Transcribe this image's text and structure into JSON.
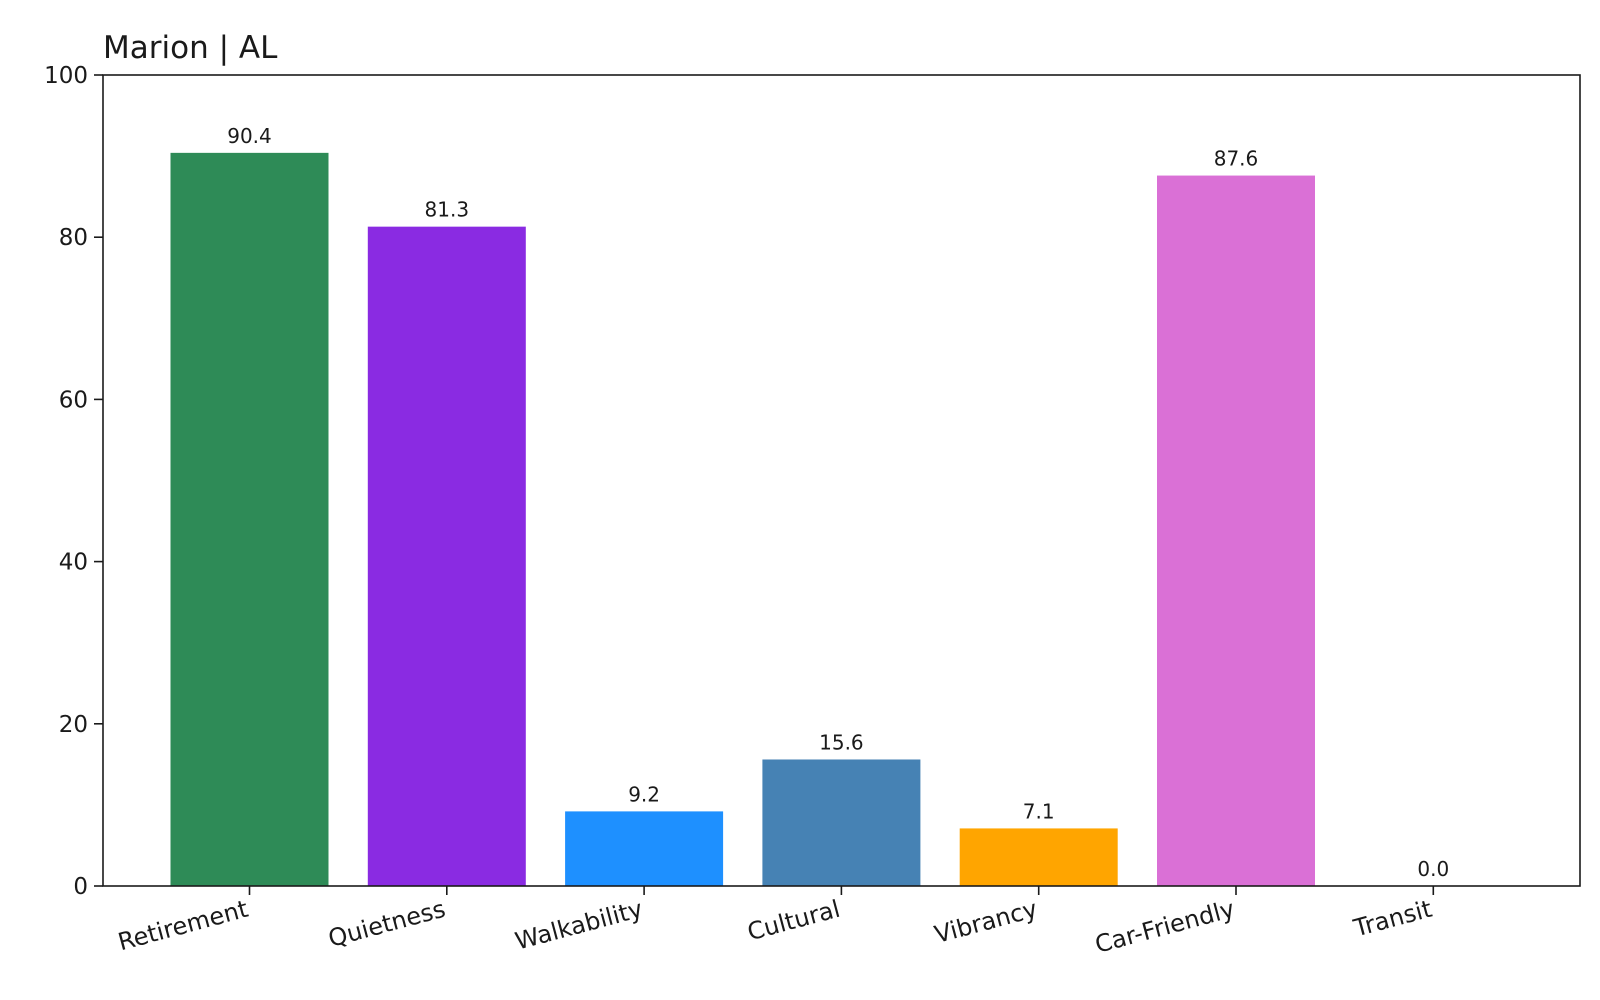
{
  "chart_data": {
    "type": "bar",
    "title": "Marion | AL",
    "xlabel": "",
    "ylabel": "",
    "ylim": [
      0,
      100
    ],
    "yticks": [
      "0",
      "20",
      "40",
      "60",
      "80",
      "100"
    ],
    "grid": false,
    "categories": [
      "Retirement",
      "Quietness",
      "Walkability",
      "Cultural",
      "Vibrancy",
      "Car-Friendly",
      "Transit"
    ],
    "values": [
      90.4,
      81.3,
      9.2,
      15.6,
      7.1,
      87.6,
      0.0
    ],
    "value_labels": [
      "90.4",
      "81.3",
      "9.2",
      "15.6",
      "7.1",
      "87.6",
      "0.0"
    ],
    "colors": [
      "#2e8b57",
      "#8a2be2",
      "#1e90ff",
      "#4682b4",
      "#ffa500",
      "#da70d6",
      "#808080"
    ]
  }
}
